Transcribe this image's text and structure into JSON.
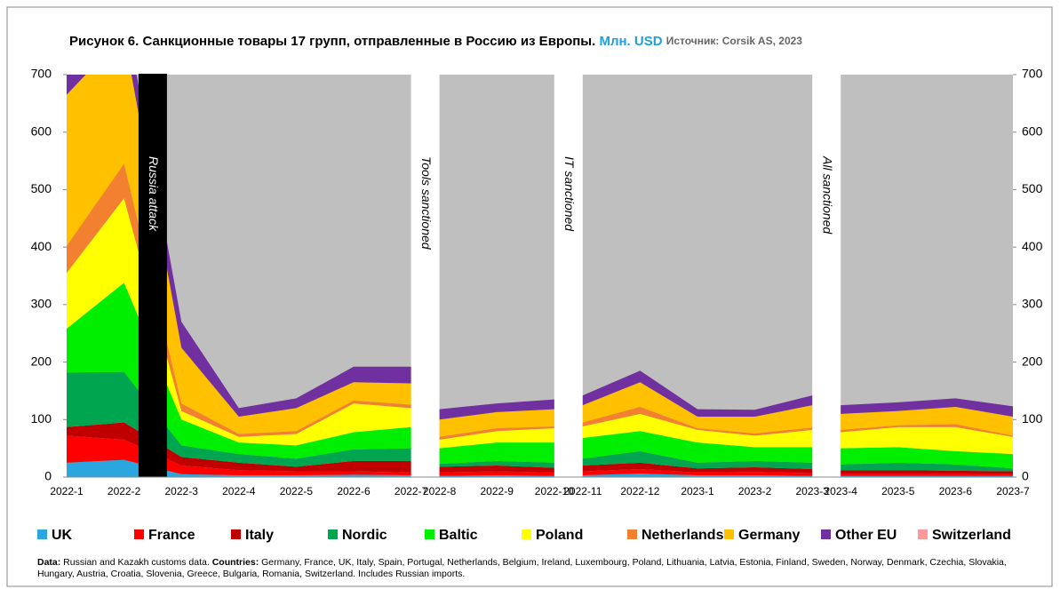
{
  "chart_data": {
    "type": "stacked_area",
    "title": "Рисунок 6. Санкционные товары 17 групп, отправленные в Россию из Европы.",
    "unit": "Млн. USD",
    "source": "Источник: Corsik AS, 2023",
    "categories": [
      "2022-1",
      "2022-2",
      "2022-3",
      "2022-4",
      "2022-5",
      "2022-6",
      "2022-7",
      "2022-8",
      "2022-9",
      "2022-10",
      "2022-11",
      "2022-12",
      "2023-1",
      "2023-2",
      "2023-3",
      "2023-4",
      "2023-5",
      "2023-6",
      "2023-7"
    ],
    "series": [
      {
        "name": "UK",
        "color": "#2aa7df",
        "values": [
          25,
          30,
          5,
          3,
          3,
          4,
          3,
          2,
          3,
          2,
          3,
          6,
          3,
          3,
          2,
          2,
          2,
          2,
          2
        ]
      },
      {
        "name": "France",
        "color": "#ff0000",
        "values": [
          47,
          35,
          15,
          9,
          7,
          6,
          5,
          6,
          7,
          6,
          7,
          8,
          5,
          6,
          5,
          3,
          3,
          3,
          3
        ]
      },
      {
        "name": "Italy",
        "color": "#c00000",
        "values": [
          15,
          30,
          15,
          13,
          8,
          18,
          20,
          10,
          10,
          8,
          10,
          11,
          7,
          8,
          7,
          7,
          7,
          6,
          5
        ]
      },
      {
        "name": "Nordic",
        "color": "#00a550",
        "values": [
          95,
          88,
          20,
          15,
          14,
          20,
          22,
          5,
          8,
          9,
          12,
          20,
          10,
          11,
          11,
          10,
          13,
          11,
          5
        ]
      },
      {
        "name": "Baltic",
        "color": "#00ee00",
        "values": [
          76,
          155,
          45,
          20,
          23,
          30,
          37,
          27,
          32,
          35,
          36,
          35,
          35,
          24,
          27,
          28,
          27,
          23,
          25
        ]
      },
      {
        "name": "Poland",
        "color": "#ffff00",
        "values": [
          97,
          147,
          15,
          10,
          20,
          50,
          33,
          15,
          20,
          25,
          20,
          30,
          22,
          20,
          30,
          28,
          35,
          42,
          30
        ]
      },
      {
        "name": "Netherlands",
        "color": "#f28030",
        "values": [
          47,
          60,
          13,
          5,
          5,
          5,
          6,
          5,
          5,
          3,
          7,
          12,
          3,
          4,
          4,
          4,
          3,
          5,
          2
        ]
      },
      {
        "name": "Germany",
        "color": "#ffc000",
        "values": [
          263,
          225,
          97,
          30,
          40,
          32,
          37,
          30,
          28,
          30,
          30,
          43,
          20,
          29,
          39,
          28,
          25,
          30,
          33
        ]
      },
      {
        "name": "Other EU",
        "color": "#7030a0",
        "values": [
          35,
          50,
          45,
          15,
          17,
          27,
          29,
          18,
          15,
          17,
          17,
          20,
          13,
          12,
          17,
          15,
          15,
          15,
          18
        ]
      },
      {
        "name": "Switzerland",
        "color": "#ff9999",
        "values": [
          0,
          0,
          0,
          0,
          0,
          0,
          0,
          0,
          0,
          0,
          0,
          0,
          0,
          0,
          0,
          0,
          0,
          0,
          0
        ]
      }
    ],
    "ylim": [
      0,
      700
    ],
    "yticks": [
      0,
      100,
      200,
      300,
      400,
      500,
      600,
      700
    ],
    "y2lim": [
      0,
      700
    ],
    "y2ticks": [
      0,
      100,
      200,
      300,
      400,
      500,
      600,
      700
    ],
    "annotations": [
      {
        "text": "Russia attack",
        "after": "2022-2",
        "style": "bar"
      },
      {
        "text": "Tools sanctioned",
        "after": "2022-7",
        "style": "gap"
      },
      {
        "text": "IT sanctioned",
        "after": "2022-10",
        "style": "gap"
      },
      {
        "text": "All sanctioned",
        "after": "2023-3",
        "style": "gap"
      }
    ],
    "footnote": {
      "data_label": "Data:",
      "data_text": " Russian and Kazakh customs data. ",
      "countries_label": "Countries:",
      "countries_text": " Germany, France, UK, Italy, Spain, Portugal, Netherlands, Belgium, Ireland, Luxembourg, Poland, Lithuania, Latvia, Estonia, Finland, Sweden, Norway, Denmark, Czechia, Slovakia, Hungary, Austria, Croatia, Slovenia, Greece, Bulgaria, Romania, Switzerland.  Includes Russian imports."
    }
  }
}
